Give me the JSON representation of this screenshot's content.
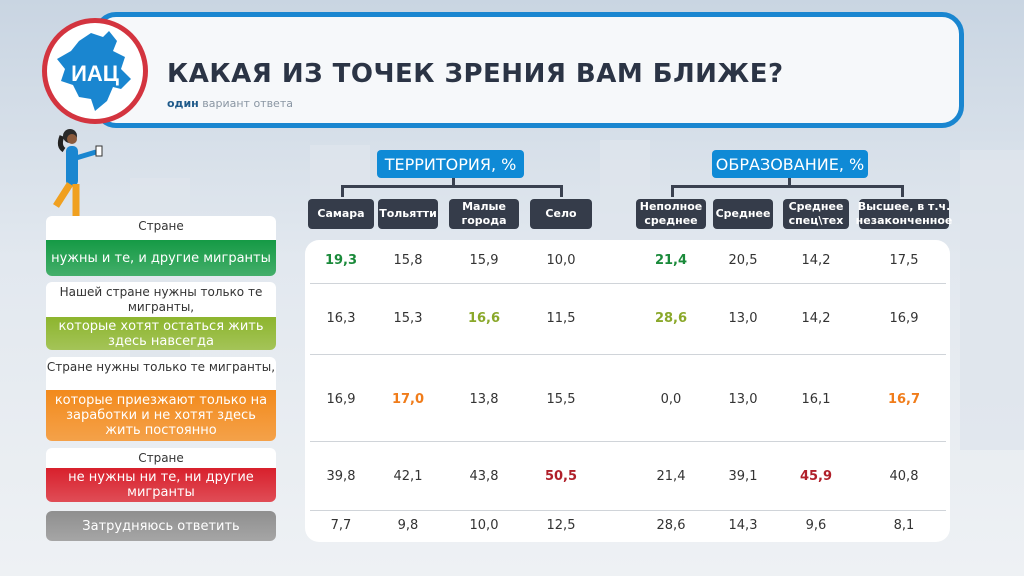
{
  "header": {
    "logo_text": "ИАЦ",
    "title": "КАКАЯ ИЗ ТОЧЕК ЗРЕНИЯ ВАМ БЛИЖЕ?",
    "subtitle_bold": "один",
    "subtitle_rest": " вариант ответа"
  },
  "groups": [
    {
      "label": "ТЕРРИТОРИЯ, %"
    },
    {
      "label": "ОБРАЗОВАНИЕ, %"
    }
  ],
  "columns": [
    "Самара",
    "Тольятти",
    "Малые города",
    "Село",
    "Неполное среднее",
    "Среднее",
    "Среднее спец\\тех",
    "Высшее, в т.ч. незаконченное"
  ],
  "rows": [
    {
      "label_top": "Стране",
      "label_color": "нужны и те, и другие мигранты",
      "color": "#159a45",
      "values": [
        "19,3",
        "15,8",
        "15,9",
        "10,0",
        "21,4",
        "20,5",
        "14,2",
        "17,5"
      ],
      "highlight": [
        0,
        4
      ],
      "highlight_color": "#1a8a3a"
    },
    {
      "label_top": "Нашей стране нужны только те мигранты,",
      "label_color": "которые хотят остаться жить здесь навсегда",
      "color": "#8db52e",
      "values": [
        "16,3",
        "15,3",
        "16,6",
        "11,5",
        "28,6",
        "13,0",
        "14,2",
        "16,9"
      ],
      "highlight": [
        2,
        4
      ],
      "highlight_color": "#8aa82a"
    },
    {
      "label_top": "Стране нужны только те мигранты,",
      "label_color": "которые приезжают только на заработки и не хотят здесь жить постоянно",
      "color": "#f28a1c",
      "values": [
        "16,9",
        "17,0",
        "13,8",
        "15,5",
        "0,0",
        "13,0",
        "16,1",
        "16,7"
      ],
      "highlight": [
        1,
        7
      ],
      "highlight_color": "#f07c1a"
    },
    {
      "label_top": "Стране",
      "label_color": "не нужны ни те, ни другие мигранты",
      "color": "#d8202c",
      "values": [
        "39,8",
        "42,1",
        "43,8",
        "50,5",
        "21,4",
        "39,1",
        "45,9",
        "40,8"
      ],
      "highlight": [
        3,
        6
      ],
      "highlight_color": "#b0202a"
    },
    {
      "label_top": "",
      "label_color": "Затрудняюсь ответить",
      "color": "#8f8f8f",
      "values": [
        "7,7",
        "9,8",
        "10,0",
        "12,5",
        "28,6",
        "14,3",
        "9,6",
        "8,1"
      ],
      "highlight": [],
      "highlight_color": ""
    }
  ]
}
